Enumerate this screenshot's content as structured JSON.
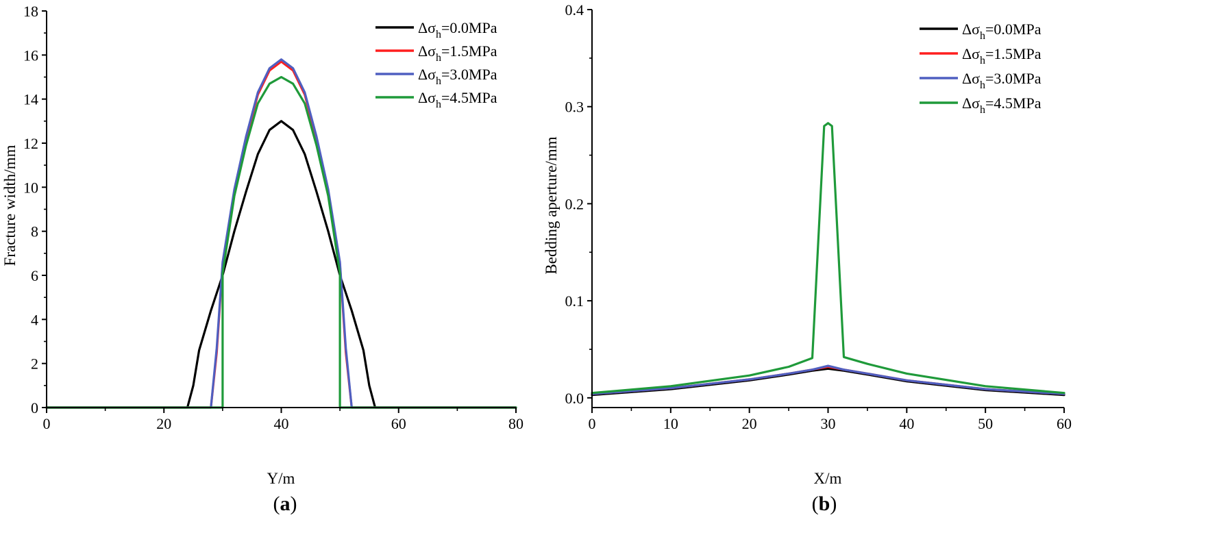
{
  "chart_data": [
    {
      "type": "line",
      "panel_label": "a",
      "xlabel": "Y/m",
      "ylabel": "Fracture width/mm",
      "xlim": [
        0,
        80
      ],
      "ylim": [
        0,
        18
      ],
      "xticks": [
        0,
        20,
        40,
        60,
        80
      ],
      "yticks": [
        0,
        2,
        4,
        6,
        8,
        10,
        12,
        14,
        16,
        18
      ],
      "legend_position": "top-right",
      "series": [
        {
          "name": "Δσh=0.0MPa",
          "label_main": "Δσ",
          "label_sub": "h",
          "label_value": "=0.0MPa",
          "color": "#000000",
          "points": [
            [
              0,
              0
            ],
            [
              24,
              0
            ],
            [
              25,
              1
            ],
            [
              26,
              2.6
            ],
            [
              28,
              4.4
            ],
            [
              30,
              6
            ],
            [
              32,
              8
            ],
            [
              34,
              9.8
            ],
            [
              36,
              11.5
            ],
            [
              38,
              12.6
            ],
            [
              40,
              13
            ],
            [
              42,
              12.6
            ],
            [
              44,
              11.5
            ],
            [
              46,
              9.8
            ],
            [
              48,
              8
            ],
            [
              50,
              6
            ],
            [
              52,
              4.4
            ],
            [
              54,
              2.6
            ],
            [
              55,
              1
            ],
            [
              56,
              0
            ],
            [
              80,
              0
            ]
          ]
        },
        {
          "name": "Δσh=1.5MPa",
          "label_main": "Δσ",
          "label_sub": "h",
          "label_value": "=1.5MPa",
          "color": "#ff1f1f",
          "points": [
            [
              0,
              0
            ],
            [
              28,
              0
            ],
            [
              29,
              2.5
            ],
            [
              30,
              6.5
            ],
            [
              32,
              9.8
            ],
            [
              34,
              12.2
            ],
            [
              36,
              14.2
            ],
            [
              38,
              15.3
            ],
            [
              40,
              15.7
            ],
            [
              42,
              15.3
            ],
            [
              44,
              14.2
            ],
            [
              46,
              12.2
            ],
            [
              48,
              9.8
            ],
            [
              50,
              6.5
            ],
            [
              51,
              2.5
            ],
            [
              52,
              0
            ],
            [
              80,
              0
            ]
          ]
        },
        {
          "name": "Δσh=3.0MPa",
          "label_main": "Δσ",
          "label_sub": "h",
          "label_value": "=3.0MPa",
          "color": "#4f5fc0",
          "points": [
            [
              0,
              0
            ],
            [
              28,
              0
            ],
            [
              29,
              2.7
            ],
            [
              30,
              6.6
            ],
            [
              32,
              9.9
            ],
            [
              34,
              12.3
            ],
            [
              36,
              14.3
            ],
            [
              38,
              15.4
            ],
            [
              40,
              15.8
            ],
            [
              42,
              15.4
            ],
            [
              44,
              14.3
            ],
            [
              46,
              12.3
            ],
            [
              48,
              9.9
            ],
            [
              50,
              6.6
            ],
            [
              51,
              2.7
            ],
            [
              52,
              0
            ],
            [
              80,
              0
            ]
          ]
        },
        {
          "name": "Δσh=4.5MPa",
          "label_main": "Δσ",
          "label_sub": "h",
          "label_value": "=4.5MPa",
          "color": "#1f9a3a",
          "points": [
            [
              0,
              0
            ],
            [
              30,
              0
            ],
            [
              30,
              6.1
            ],
            [
              32,
              9.6
            ],
            [
              34,
              11.9
            ],
            [
              36,
              13.8
            ],
            [
              38,
              14.7
            ],
            [
              40,
              15
            ],
            [
              42,
              14.7
            ],
            [
              44,
              13.8
            ],
            [
              46,
              11.9
            ],
            [
              48,
              9.6
            ],
            [
              50,
              6.1
            ],
            [
              50,
              0
            ],
            [
              80,
              0
            ]
          ]
        }
      ]
    },
    {
      "type": "line",
      "panel_label": "b",
      "xlabel": "X/m",
      "ylabel": "Bedding aperture/mm",
      "xlim": [
        0,
        60
      ],
      "ylim": [
        -0.01,
        0.4
      ],
      "xticks": [
        0,
        10,
        20,
        30,
        40,
        50,
        60
      ],
      "yticks": [
        0.0,
        0.1,
        0.2,
        0.3,
        0.4
      ],
      "ytick_labels": [
        "0.0",
        "0.1",
        "0.2",
        "0.3",
        "0.4"
      ],
      "legend_position": "top-right",
      "series": [
        {
          "name": "Δσh=0.0MPa",
          "label_main": "Δσ",
          "label_sub": "h",
          "label_value": "=0.0MPa",
          "color": "#000000",
          "points": [
            [
              0,
              0.003
            ],
            [
              10,
              0.009
            ],
            [
              20,
              0.018
            ],
            [
              25,
              0.024
            ],
            [
              28,
              0.028
            ],
            [
              30,
              0.03
            ],
            [
              32,
              0.028
            ],
            [
              35,
              0.024
            ],
            [
              40,
              0.017
            ],
            [
              50,
              0.008
            ],
            [
              60,
              0.003
            ]
          ]
        },
        {
          "name": "Δσh=1.5MPa",
          "label_main": "Δσ",
          "label_sub": "h",
          "label_value": "=1.5MPa",
          "color": "#ff1f1f",
          "points": [
            [
              0,
              0.004
            ],
            [
              10,
              0.01
            ],
            [
              20,
              0.019
            ],
            [
              25,
              0.025
            ],
            [
              28,
              0.029
            ],
            [
              30,
              0.032
            ],
            [
              32,
              0.029
            ],
            [
              35,
              0.025
            ],
            [
              40,
              0.018
            ],
            [
              50,
              0.009
            ],
            [
              60,
              0.004
            ]
          ]
        },
        {
          "name": "Δσh=3.0MPa",
          "label_main": "Δσ",
          "label_sub": "h",
          "label_value": "=3.0MPa",
          "color": "#4f5fc0",
          "points": [
            [
              0,
              0.004
            ],
            [
              10,
              0.01
            ],
            [
              20,
              0.019
            ],
            [
              25,
              0.025
            ],
            [
              28,
              0.029
            ],
            [
              30,
              0.033
            ],
            [
              32,
              0.029
            ],
            [
              35,
              0.025
            ],
            [
              40,
              0.018
            ],
            [
              50,
              0.009
            ],
            [
              60,
              0.004
            ]
          ]
        },
        {
          "name": "Δσh=4.5MPa",
          "label_main": "Δσ",
          "label_sub": "h",
          "label_value": "=4.5MPa",
          "color": "#1f9a3a",
          "points": [
            [
              0,
              0.005
            ],
            [
              10,
              0.012
            ],
            [
              20,
              0.023
            ],
            [
              25,
              0.032
            ],
            [
              28,
              0.041
            ],
            [
              29.5,
              0.28
            ],
            [
              30,
              0.283
            ],
            [
              30.5,
              0.28
            ],
            [
              32,
              0.042
            ],
            [
              35,
              0.035
            ],
            [
              40,
              0.025
            ],
            [
              50,
              0.012
            ],
            [
              60,
              0.005
            ]
          ]
        }
      ]
    }
  ]
}
